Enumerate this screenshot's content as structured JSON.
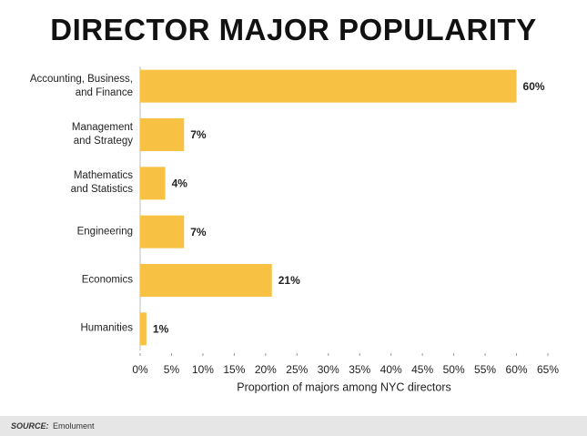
{
  "chart_data": {
    "type": "barh",
    "title": "DIRECTOR MAJOR POPULARITY",
    "categories": [
      "Accounting, Business,\nand Finance",
      "Management\nand Strategy",
      "Mathematics\nand Statistics",
      "Engineering",
      "Economics",
      "Humanities"
    ],
    "values": [
      60,
      7,
      4,
      7,
      21,
      1
    ],
    "value_labels": [
      "60%",
      "7%",
      "4%",
      "7%",
      "21%",
      "1%"
    ],
    "color": "#f7c244",
    "xlim": [
      0,
      65
    ],
    "xticks": [
      {
        "value": 0,
        "label": "0%"
      },
      {
        "value": 5,
        "label": "5%"
      },
      {
        "value": 10,
        "label": "10%"
      },
      {
        "value": 15,
        "label": "15%"
      },
      {
        "value": 20,
        "label": "20%"
      },
      {
        "value": 25,
        "label": "25%"
      },
      {
        "value": 30,
        "label": "30%"
      },
      {
        "value": 35,
        "label": "35%"
      },
      {
        "value": 40,
        "label": "40%"
      },
      {
        "value": 45,
        "label": "45%"
      },
      {
        "value": 50,
        "label": "50%"
      },
      {
        "value": 55,
        "label": "55%"
      },
      {
        "value": 60,
        "label": "60%"
      },
      {
        "value": 65,
        "label": "65%"
      }
    ],
    "xlabel": "Proportion of majors among NYC directors",
    "source_label": "SOURCE:",
    "source": "Emolument"
  }
}
